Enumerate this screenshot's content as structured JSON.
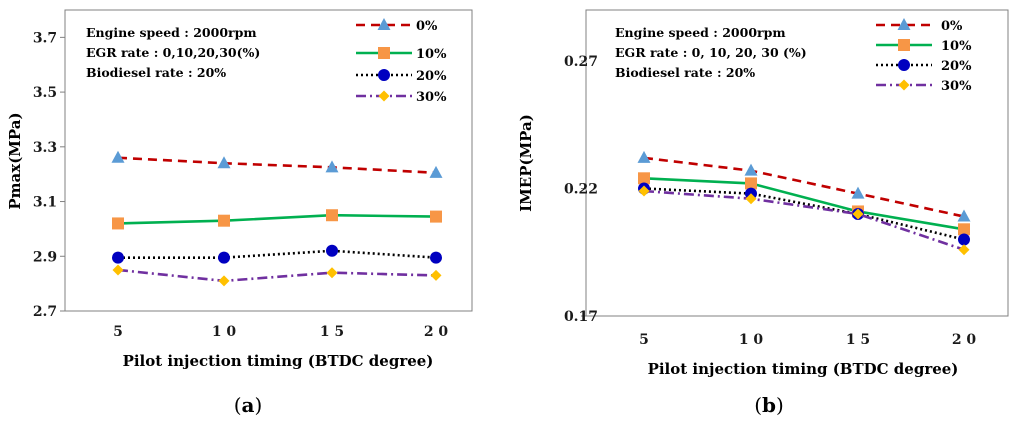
{
  "series_styles": [
    {
      "color": "#C00000",
      "dash": "9,6",
      "marker": "triangle",
      "marker_color": "#5B9BD5"
    },
    {
      "color": "#00B050",
      "dash": "",
      "marker": "square",
      "marker_color": "#F79646"
    },
    {
      "color": "#000000",
      "dash": "2,3",
      "marker": "circle",
      "marker_color": "#0000C0"
    },
    {
      "color": "#7030A0",
      "dash": "10,4,2,4",
      "marker": "diamond",
      "marker_color": "#FFC000"
    }
  ],
  "chart_data": [
    {
      "type": "line",
      "panel_label": "a",
      "categories": [
        "5",
        "1 0",
        "1 5",
        "2 0"
      ],
      "xlabel": "Pilot injection  timing (BTDC degree)",
      "ylabel": "Pmax(MPa)",
      "ylim": [
        2.7,
        3.8
      ],
      "yticks": [
        "2.7",
        "2.9",
        "3.1",
        "3.3",
        "3.5",
        "3.7"
      ],
      "ytick_values": [
        2.7,
        2.9,
        3.1,
        3.3,
        3.5,
        3.7
      ],
      "grid": false,
      "legend_position": "top-right",
      "annotations": [
        "Engine speed : 2000rpm",
        "EGR rate : 0,10,20,30(%)",
        "Biodiesel rate : 20%"
      ],
      "series": [
        {
          "name": "0%",
          "values": [
            3.26,
            3.24,
            3.225,
            3.205
          ]
        },
        {
          "name": "10%",
          "values": [
            3.02,
            3.03,
            3.05,
            3.045
          ]
        },
        {
          "name": "20%",
          "values": [
            2.895,
            2.895,
            2.92,
            2.895
          ]
        },
        {
          "name": "30%",
          "values": [
            2.85,
            2.81,
            2.84,
            2.83
          ]
        }
      ]
    },
    {
      "type": "line",
      "panel_label": "b",
      "categories": [
        "5",
        "1 0",
        "1 5",
        "2 0"
      ],
      "xlabel": "Pilot injection  timing (BTDC degree)",
      "ylabel": "IMEP(MPa)",
      "ylim": [
        0.17,
        0.29
      ],
      "yticks": [
        "0.17",
        "0.22",
        "0.27"
      ],
      "ytick_values": [
        0.17,
        0.22,
        0.27
      ],
      "grid": false,
      "legend_position": "top-right",
      "annotations": [
        "Engine speed : 2000rpm",
        "EGR rate : 0, 10, 20, 30 (%)",
        "Biodiesel rate : 20%"
      ],
      "series": [
        {
          "name": "0%",
          "values": [
            0.232,
            0.227,
            0.218,
            0.209
          ]
        },
        {
          "name": "10%",
          "values": [
            0.224,
            0.222,
            0.211,
            0.204
          ]
        },
        {
          "name": "20%",
          "values": [
            0.22,
            0.218,
            0.21,
            0.2
          ]
        },
        {
          "name": "30%",
          "values": [
            0.219,
            0.216,
            0.21,
            0.196
          ]
        }
      ]
    }
  ]
}
